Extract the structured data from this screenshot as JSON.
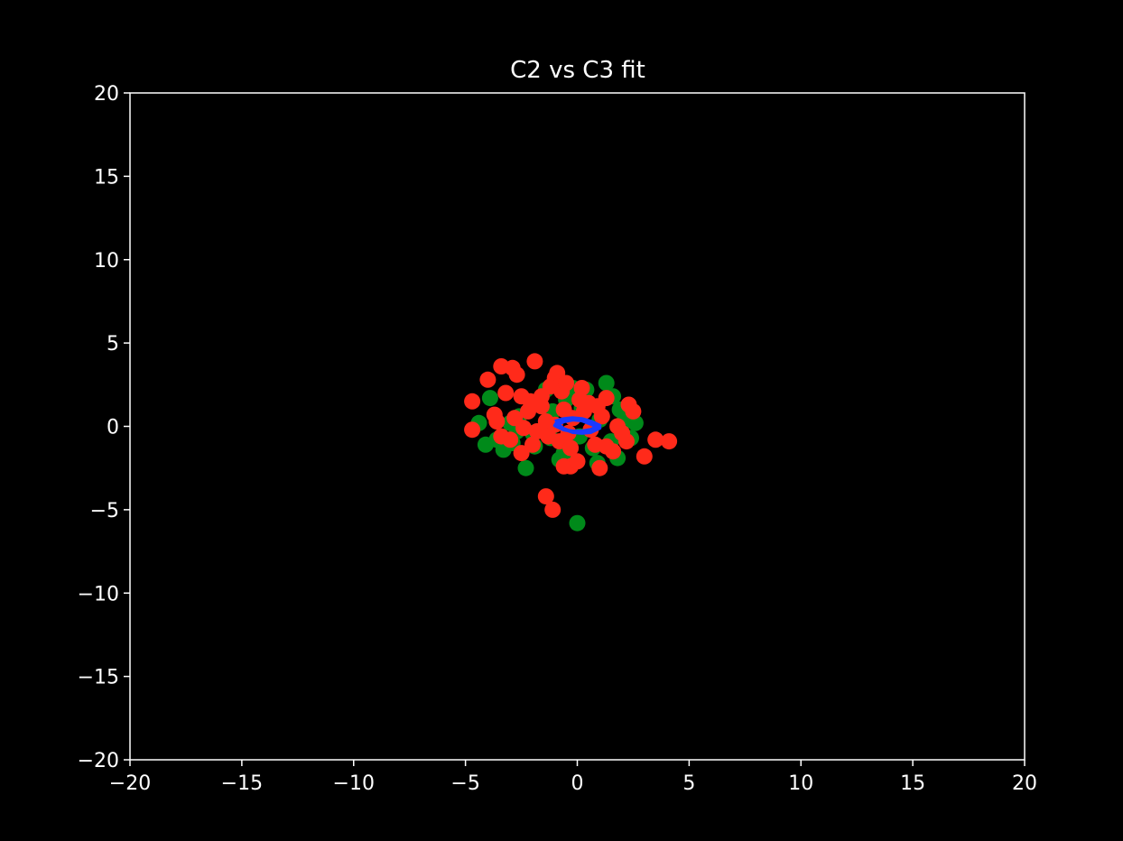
{
  "chart_data": {
    "type": "scatter",
    "title": "C2 vs C3 fit",
    "xlabel": "",
    "ylabel": "",
    "xlim": [
      -20,
      20
    ],
    "ylim": [
      -20,
      20
    ],
    "x_ticks": [
      "−20",
      "−15",
      "−10",
      "−5",
      "0",
      "5",
      "10",
      "15",
      "20"
    ],
    "y_ticks": [
      "20",
      "15",
      "10",
      "5",
      "0",
      "−5",
      "−10",
      "−15",
      "−20"
    ],
    "x_tick_values": [
      -20,
      -15,
      -10,
      -5,
      0,
      5,
      10,
      15,
      20
    ],
    "y_tick_values": [
      20,
      15,
      10,
      5,
      0,
      -5,
      -10,
      -15,
      -20
    ],
    "grid": false,
    "legend": "none",
    "background": "#000000",
    "axis_color": "#ffffff",
    "series": [
      {
        "color": "#008a1a",
        "points": [
          [
            -3.9,
            1.7
          ],
          [
            -4.4,
            0.2
          ],
          [
            -4.1,
            -1.1
          ],
          [
            -3.6,
            -0.8
          ],
          [
            -3.3,
            -1.4
          ],
          [
            -2.9,
            -1.0
          ],
          [
            -2.6,
            0.6
          ],
          [
            -2.3,
            -2.5
          ],
          [
            -2.0,
            -0.4
          ],
          [
            -1.7,
            1.3
          ],
          [
            -1.4,
            2.2
          ],
          [
            -1.1,
            0.9
          ],
          [
            -0.8,
            -2.0
          ],
          [
            -0.5,
            1.6
          ],
          [
            -0.2,
            2.3
          ],
          [
            0.1,
            -0.6
          ],
          [
            0.4,
            2.2
          ],
          [
            0.7,
            -1.3
          ],
          [
            1.0,
            0.4
          ],
          [
            1.3,
            2.6
          ],
          [
            1.5,
            -0.9
          ],
          [
            1.8,
            -1.9
          ],
          [
            2.1,
            0.3
          ],
          [
            2.4,
            -0.7
          ],
          [
            2.6,
            0.2
          ],
          [
            1.6,
            1.8
          ],
          [
            -0.6,
            -1.6
          ],
          [
            0.9,
            -2.2
          ],
          [
            -3.0,
            0.2
          ],
          [
            -1.9,
            -1.2
          ],
          [
            0.0,
            -5.8
          ],
          [
            -2.7,
            -0.3
          ],
          [
            0.2,
            1.1
          ],
          [
            -1.2,
            -0.7
          ],
          [
            1.9,
            1.0
          ]
        ]
      },
      {
        "color": "#ff2a1a",
        "points": [
          [
            -4.7,
            1.5
          ],
          [
            -4.7,
            -0.2
          ],
          [
            -3.7,
            0.7
          ],
          [
            -3.6,
            0.3
          ],
          [
            -3.4,
            -0.6
          ],
          [
            -4.0,
            2.8
          ],
          [
            -3.4,
            3.6
          ],
          [
            -2.9,
            3.5
          ],
          [
            -2.7,
            3.1
          ],
          [
            -3.2,
            2.0
          ],
          [
            -2.5,
            1.8
          ],
          [
            -2.2,
            0.9
          ],
          [
            -2.4,
            -0.1
          ],
          [
            -2.5,
            -1.6
          ],
          [
            -2.0,
            -1.1
          ],
          [
            -1.9,
            3.9
          ],
          [
            -1.6,
            1.2
          ],
          [
            -1.4,
            0.3
          ],
          [
            -1.3,
            -0.6
          ],
          [
            -1.2,
            2.4
          ],
          [
            -1.0,
            2.9
          ],
          [
            -0.9,
            3.2
          ],
          [
            -0.7,
            2.1
          ],
          [
            -0.6,
            1.0
          ],
          [
            -0.4,
            -0.4
          ],
          [
            -0.3,
            -2.4
          ],
          [
            -0.6,
            -2.4
          ],
          [
            0.0,
            -2.1
          ],
          [
            0.1,
            1.6
          ],
          [
            0.3,
            0.9
          ],
          [
            0.5,
            1.4
          ],
          [
            0.8,
            -1.1
          ],
          [
            1.0,
            -2.5
          ],
          [
            1.3,
            -1.2
          ],
          [
            1.3,
            1.7
          ],
          [
            1.6,
            -1.5
          ],
          [
            1.8,
            0.0
          ],
          [
            2.0,
            -0.4
          ],
          [
            2.2,
            -0.9
          ],
          [
            2.3,
            1.3
          ],
          [
            2.5,
            0.9
          ],
          [
            3.0,
            -1.8
          ],
          [
            3.5,
            -0.8
          ],
          [
            4.1,
            -0.9
          ],
          [
            -1.4,
            -4.2
          ],
          [
            -1.1,
            -5.0
          ],
          [
            -0.5,
            2.6
          ],
          [
            -1.8,
            -0.3
          ],
          [
            -0.2,
            0.5
          ],
          [
            0.6,
            -0.2
          ],
          [
            -2.8,
            0.5
          ],
          [
            -1.6,
            1.8
          ],
          [
            -0.8,
            -0.9
          ],
          [
            0.2,
            2.3
          ],
          [
            -2.1,
            1.5
          ],
          [
            1.1,
            0.6
          ],
          [
            -3.0,
            -0.8
          ],
          [
            0.9,
            1.2
          ],
          [
            -1.0,
            0.1
          ],
          [
            -0.3,
            -1.3
          ]
        ]
      }
    ],
    "fit_curve": {
      "color": "#1a3aff",
      "points": [
        [
          -1.0,
          0.3
        ],
        [
          -0.6,
          0.45
        ],
        [
          -0.2,
          0.5
        ],
        [
          0.2,
          0.45
        ],
        [
          0.6,
          0.3
        ],
        [
          1.0,
          0.05
        ],
        [
          0.6,
          -0.2
        ],
        [
          0.2,
          -0.3
        ],
        [
          -0.2,
          -0.3
        ],
        [
          -0.6,
          -0.2
        ],
        [
          -1.0,
          0.05
        ],
        [
          -0.6,
          0.3
        ],
        [
          -0.2,
          0.4
        ],
        [
          0.2,
          0.35
        ],
        [
          0.6,
          0.15
        ],
        [
          1.0,
          -0.1
        ],
        [
          0.6,
          -0.35
        ],
        [
          0.2,
          -0.4
        ],
        [
          -0.2,
          -0.35
        ],
        [
          -0.6,
          -0.15
        ],
        [
          -1.0,
          0.25
        ]
      ]
    }
  }
}
